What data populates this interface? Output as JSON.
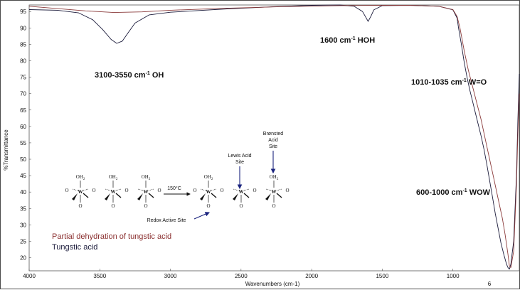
{
  "chart_data": {
    "type": "line",
    "xlabel": "Wavenumbers (cm-1)",
    "ylabel": "%Transmittance",
    "xlim": [
      4000,
      530
    ],
    "ylim": [
      16,
      97
    ],
    "x_ticks": [
      4000,
      3500,
      3000,
      2500,
      2000,
      1500,
      1000
    ],
    "y_ticks": [
      20,
      25,
      30,
      35,
      40,
      45,
      50,
      55,
      60,
      65,
      70,
      75,
      80,
      85,
      90,
      95
    ],
    "grid": false,
    "page_number": "6",
    "series": [
      {
        "name": "Tungstic acid",
        "color": "#1a1a3a",
        "x": [
          4000,
          3800,
          3650,
          3550,
          3480,
          3420,
          3380,
          3340,
          3300,
          3250,
          3150,
          3000,
          2800,
          2600,
          2400,
          2200,
          2000,
          1800,
          1700,
          1640,
          1620,
          1600,
          1580,
          1560,
          1500,
          1300,
          1100,
          1000,
          970,
          960,
          940,
          920,
          900,
          880,
          860,
          840,
          820,
          800,
          780,
          760,
          740,
          720,
          700,
          680,
          660,
          640,
          620,
          610,
          600,
          590,
          570,
          550,
          540,
          530
        ],
        "y": [
          95.6,
          95.4,
          94.6,
          92.5,
          89.5,
          86.5,
          85.3,
          86.0,
          88.5,
          91.5,
          94.0,
          94.8,
          95.3,
          95.8,
          96.2,
          96.6,
          96.9,
          97.0,
          96.6,
          95.0,
          93.5,
          92.0,
          93.6,
          95.5,
          96.8,
          96.9,
          96.6,
          95.5,
          93.0,
          90.0,
          85.0,
          79.5,
          75.0,
          71.0,
          67.5,
          64.0,
          60.5,
          57.0,
          53.0,
          48.5,
          43.5,
          38.5,
          33.5,
          29.0,
          24.5,
          21.0,
          18.0,
          17.0,
          16.5,
          18.0,
          25.0,
          45.0,
          62.0,
          76.0
        ]
      },
      {
        "name": "Partial dehydration of tungstic acid",
        "color": "#8a3a3a",
        "x": [
          4000,
          3600,
          3400,
          3200,
          3000,
          2600,
          2200,
          1800,
          1500,
          1300,
          1100,
          1000,
          970,
          950,
          920,
          890,
          860,
          830,
          800,
          770,
          740,
          710,
          680,
          650,
          630,
          610,
          600,
          590,
          570,
          550,
          540,
          530
        ],
        "y": [
          96.6,
          95.2,
          94.7,
          94.9,
          95.4,
          96.0,
          96.5,
          96.8,
          96.9,
          96.9,
          96.6,
          95.6,
          93.5,
          90.0,
          83.0,
          77.0,
          72.0,
          67.0,
          62.0,
          56.0,
          50.0,
          44.0,
          38.0,
          32.0,
          27.0,
          21.0,
          17.5,
          17.0,
          22.0,
          42.0,
          58.0,
          70.0
        ]
      }
    ]
  },
  "annotations": {
    "oh": "3100-3550 cm",
    "oh_sup": "-1",
    "oh_tail": " OH",
    "hoh": "1600 cm",
    "hoh_sup": "-1",
    "hoh_tail": " HOH",
    "wo": "1010-1035 cm",
    "wo_sup": "-1",
    "wo_tail": " W=O",
    "wow": "600-1000 cm",
    "wow_sup": "-1",
    "wow_tail": " WOW"
  },
  "scheme": {
    "arrow_label": "150°C",
    "lewis_1": "Lewis Acid",
    "lewis_2": "Site",
    "bronsted_1": "Brønsted",
    "bronsted_2": "Acid",
    "bronsted_3": "Site",
    "redox": "Redox Active Site",
    "oh2": "OH",
    "oh2_sub": "2",
    "w": "W",
    "o": "O"
  },
  "legend": {
    "partial": "Partial dehydration of tungstic acid",
    "tungstic": "Tungstic acid",
    "partial_color": "#8a2f2f",
    "tungstic_color": "#1a1a3a"
  }
}
